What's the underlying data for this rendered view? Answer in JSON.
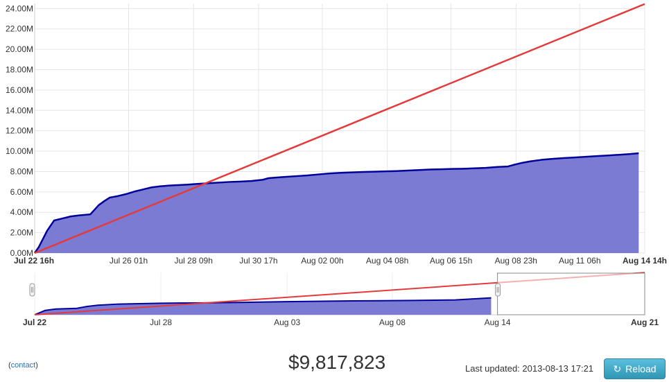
{
  "chart_data": [
    {
      "type": "area",
      "y_tick_labels": [
        "0.00M",
        "2.00M",
        "4.00M",
        "6.00M",
        "8.00M",
        "10.00M",
        "12.00M",
        "14.00M",
        "16.00M",
        "18.00M",
        "20.00M",
        "22.00M",
        "24.00M"
      ],
      "y_ticks": [
        0,
        2,
        4,
        6,
        8,
        10,
        12,
        14,
        16,
        18,
        20,
        22,
        24
      ],
      "ylim": [
        0,
        24.5
      ],
      "x_tick_labels": [
        "Jul 22 16h",
        "Jul 26 01h",
        "Jul 28 09h",
        "Jul 30 17h",
        "Aug 02 00h",
        "Aug 04 08h",
        "Aug 06 15h",
        "Aug 08 23h",
        "Aug 11 06h",
        "Aug 14 14h"
      ],
      "x_ticks": [
        0,
        3.375,
        5.708,
        8.042,
        10.333,
        12.667,
        14.958,
        17.292,
        19.583,
        21.917
      ],
      "xlim": [
        0,
        21.917
      ],
      "grid": true,
      "series": [
        {
          "color": "#00009a",
          "fill": "#7b7bd4",
          "x": [
            0,
            0.15,
            0.3,
            0.45,
            0.55,
            0.7,
            1.0,
            1.3,
            1.6,
            2.0,
            2.3,
            2.5,
            2.7,
            3.0,
            3.3,
            3.6,
            3.9,
            4.2,
            4.5,
            4.8,
            5.2,
            5.5,
            5.8,
            6.2,
            6.6,
            7.0,
            7.4,
            7.8,
            8.2,
            8.4,
            8.7,
            9.0,
            9.4,
            9.8,
            10.2,
            10.6,
            11.0,
            11.4,
            11.8,
            12.2,
            12.6,
            13.0,
            13.4,
            13.8,
            14.2,
            14.6,
            15.0,
            15.4,
            15.8,
            16.2,
            16.6,
            17.0,
            17.2,
            17.5,
            17.8,
            18.2,
            18.6,
            19.0,
            19.4,
            19.8,
            20.2,
            20.6,
            21.0,
            21.4,
            21.7
          ],
          "y": [
            0,
            0.6,
            1.4,
            2.2,
            2.6,
            3.2,
            3.4,
            3.6,
            3.7,
            3.8,
            4.7,
            5.1,
            5.45,
            5.6,
            5.8,
            6.05,
            6.25,
            6.45,
            6.55,
            6.62,
            6.68,
            6.72,
            6.78,
            6.85,
            6.92,
            6.98,
            7.02,
            7.08,
            7.2,
            7.35,
            7.42,
            7.48,
            7.55,
            7.62,
            7.72,
            7.82,
            7.88,
            7.92,
            7.96,
            7.99,
            8.02,
            8.05,
            8.1,
            8.15,
            8.2,
            8.23,
            8.26,
            8.28,
            8.32,
            8.36,
            8.45,
            8.5,
            8.65,
            8.85,
            9.0,
            9.15,
            9.25,
            9.32,
            9.38,
            9.45,
            9.52,
            9.58,
            9.65,
            9.72,
            9.8
          ]
        },
        {
          "color": "#e33b3b",
          "x": [
            0,
            21.917
          ],
          "y": [
            0,
            24.45
          ]
        }
      ]
    },
    {
      "type": "area",
      "x_tick_labels": [
        "Jul 22",
        "Jul 28",
        "Aug 03",
        "Aug 08",
        "Aug 14",
        "Aug 21"
      ],
      "x_ticks": [
        0,
        6,
        12,
        17,
        22,
        29
      ],
      "xlim": [
        0,
        29
      ],
      "ylim": [
        0,
        24.5
      ],
      "grid": true,
      "selection": [
        22,
        29
      ],
      "series": [
        {
          "color": "#00009a",
          "fill": "#7b7bd4",
          "x": [
            0,
            0.5,
            1,
            2,
            2.5,
            3,
            4,
            6,
            8,
            10,
            12,
            14,
            16,
            18,
            20,
            21.7
          ],
          "y": [
            0,
            2.5,
            3.3,
            3.7,
            4.8,
            5.5,
            6.2,
            6.7,
            6.9,
            7.2,
            7.6,
            7.9,
            8.1,
            8.3,
            8.6,
            9.8
          ]
        },
        {
          "color": "#e33b3b",
          "x": [
            0,
            29
          ],
          "y": [
            0,
            24.45
          ]
        }
      ]
    }
  ],
  "footer": {
    "contact_open": "(",
    "contact_link": "contact",
    "contact_close": ")",
    "total": "$9,817,823",
    "updated_label": "Last updated: 2013-08-13 17:21",
    "reload_label": "Reload",
    "reload_icon": "refresh-icon"
  }
}
